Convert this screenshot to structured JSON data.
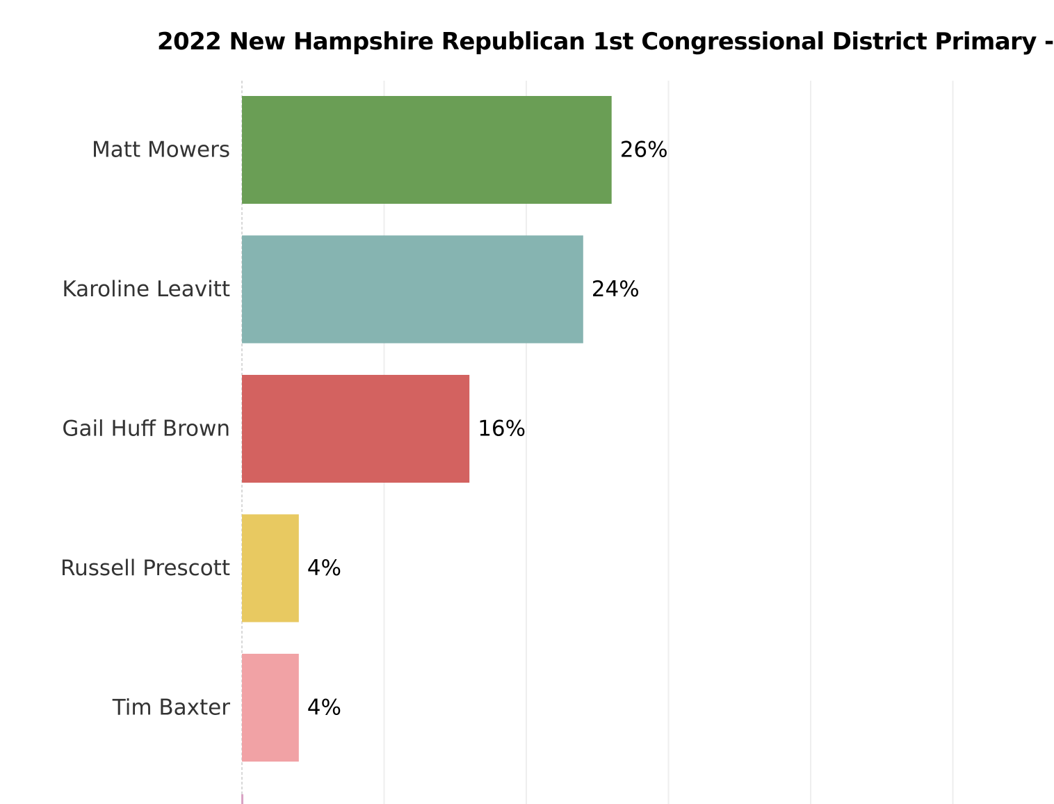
{
  "chart_data": {
    "type": "bar",
    "orientation": "horizontal",
    "title": "2022 New Hampshire Republican 1st Congressional District Primary -",
    "categories": [
      "Matt Mowers",
      "Karoline Leavitt",
      "Gail Huff Brown",
      "Russell Prescott",
      "Tim Baxter"
    ],
    "values": [
      26,
      24,
      16,
      4,
      4
    ],
    "value_labels": [
      "26%",
      "24%",
      "16%",
      "4%",
      "4%"
    ],
    "colors": [
      "#6a9e55",
      "#86b4b1",
      "#d36260",
      "#e8c961",
      "#f1a2a5"
    ],
    "partial_next_bar_color": "#d9a3c4",
    "value_unit": "%",
    "xlim": [
      0,
      50
    ],
    "grid": true,
    "legend": "none",
    "xlabel": "",
    "ylabel": ""
  }
}
